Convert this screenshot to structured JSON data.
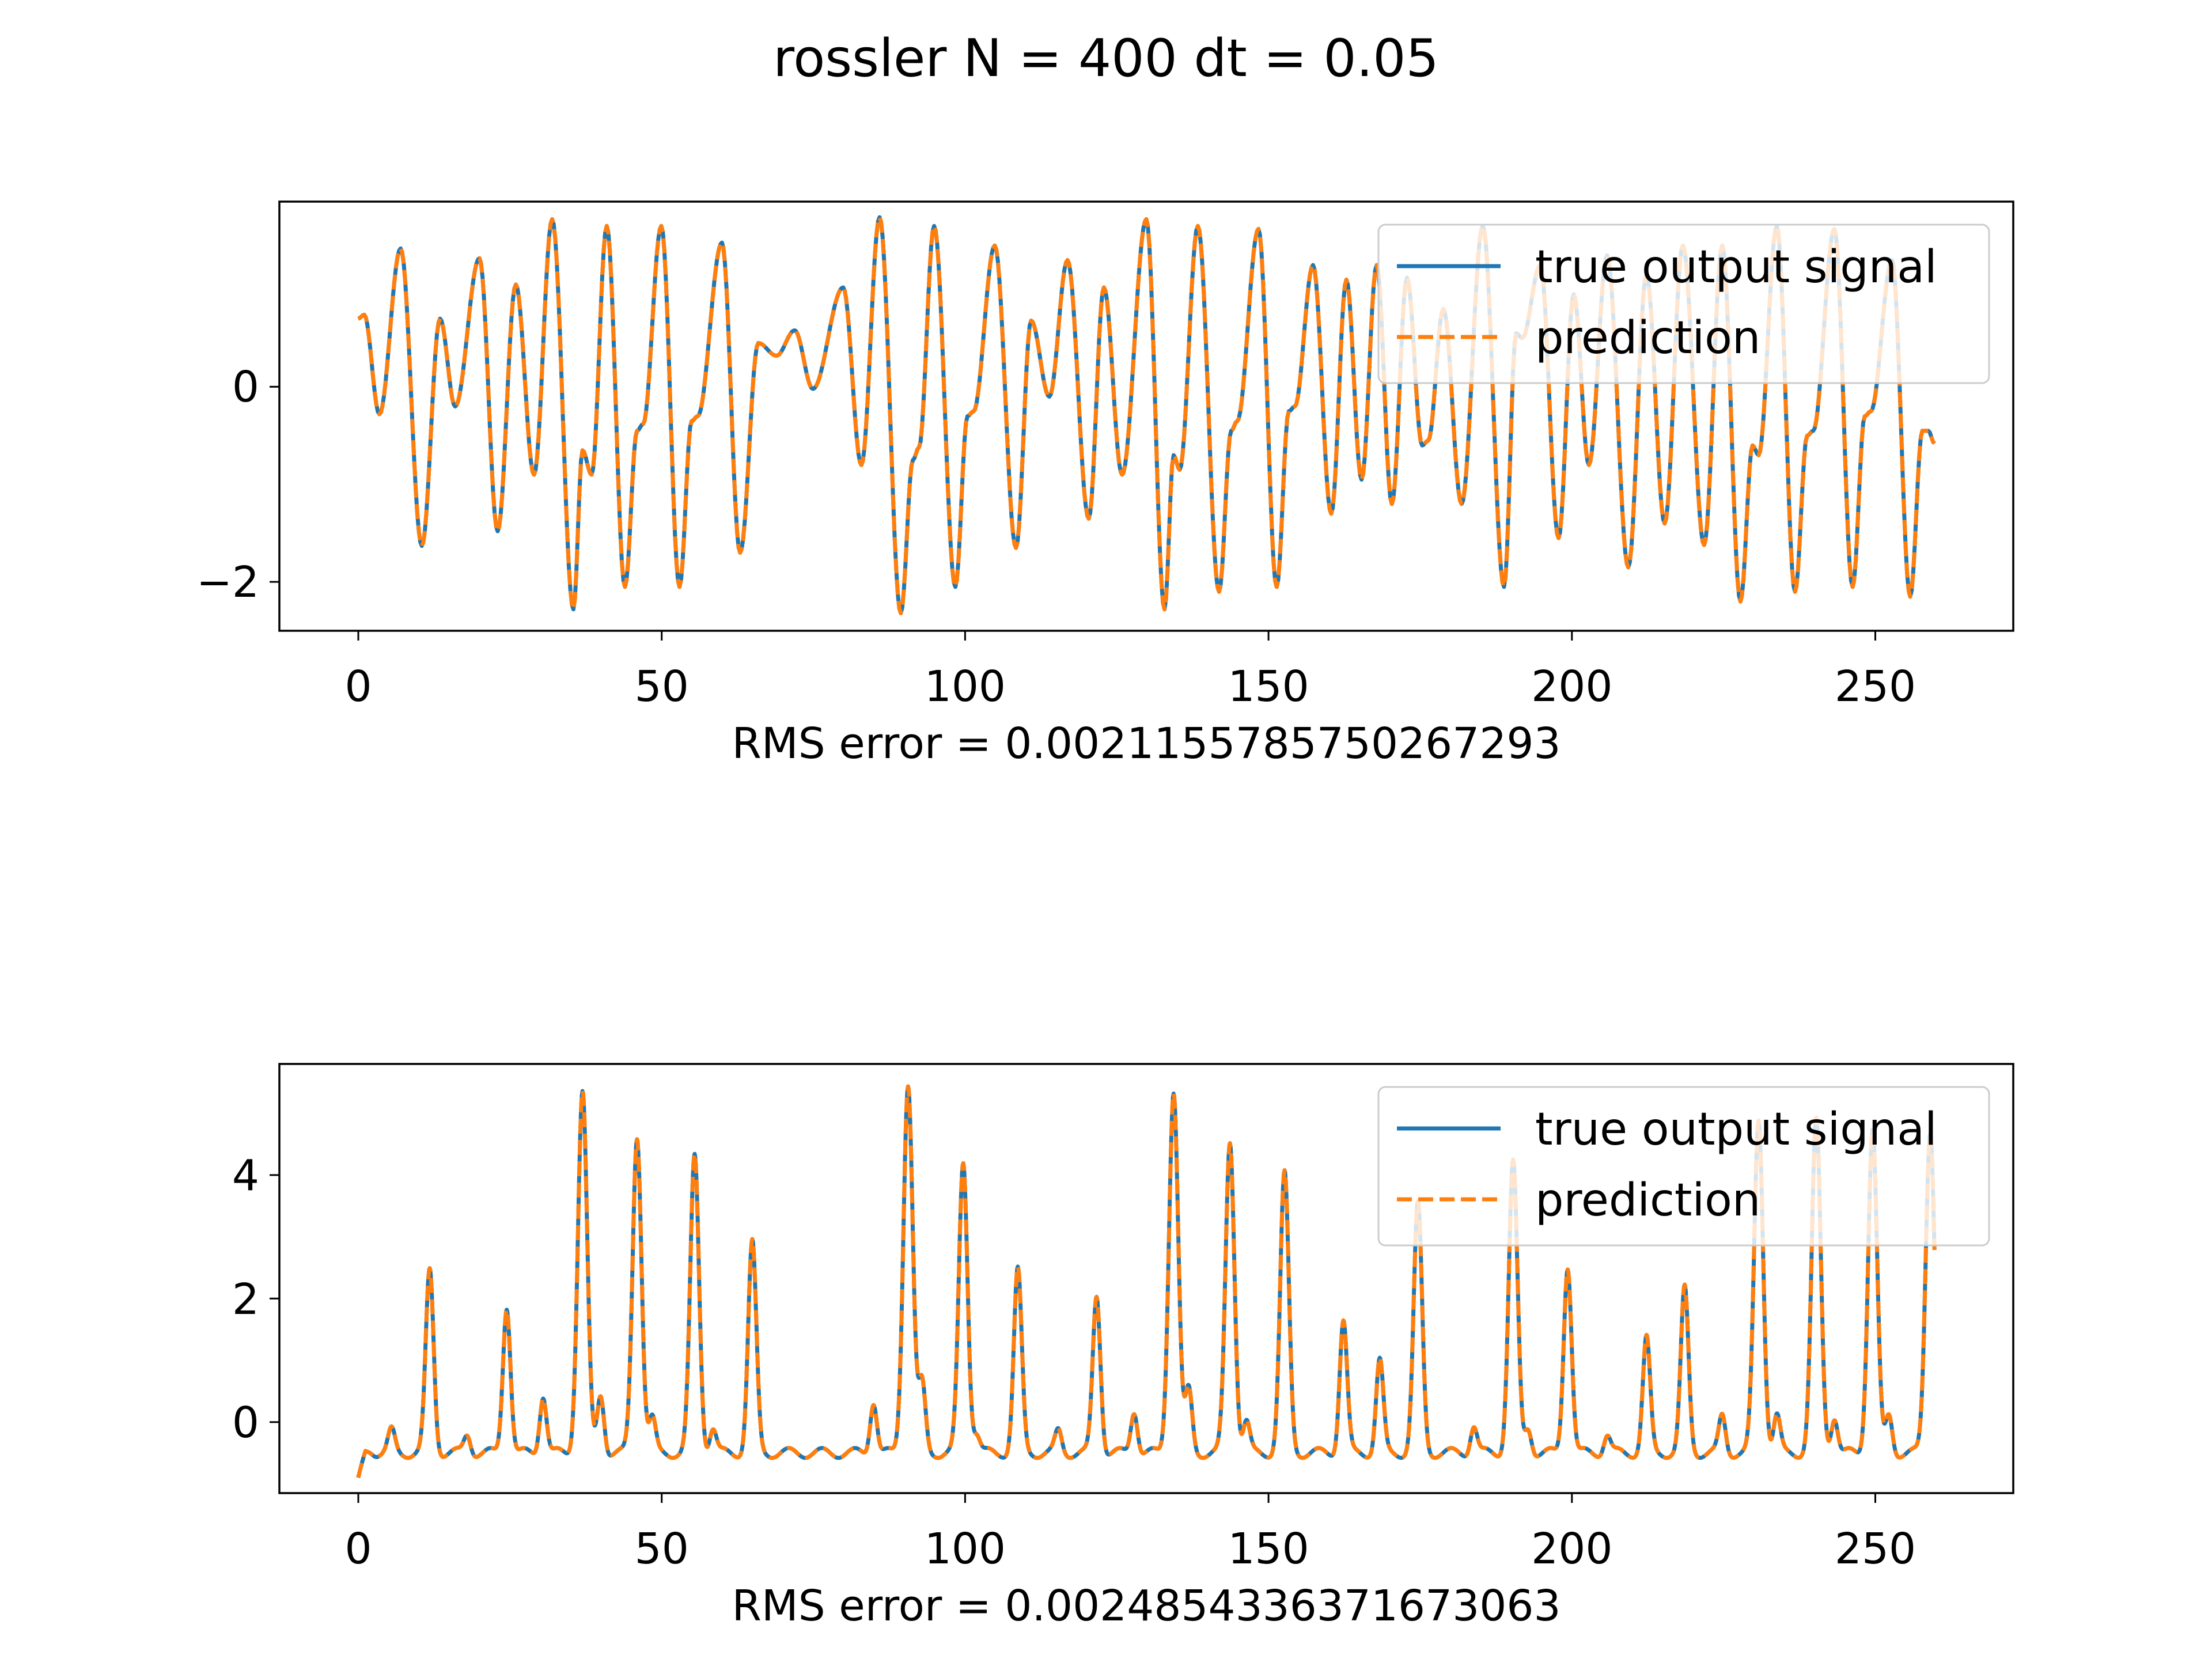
{
  "figure": {
    "title": "rossler N = 400 dt = 0.05"
  },
  "colors": {
    "true_signal": "#1f77b4",
    "prediction": "#ff7f0e",
    "axes": "#000000",
    "background": "#ffffff"
  },
  "chart_data": [
    {
      "type": "line",
      "title": "",
      "xlabel": "RMS error = 0.0021155785750267293",
      "ylabel": "",
      "xlim": [
        -13,
        273
      ],
      "ylim": [
        -2.5,
        1.9
      ],
      "xticks": [
        0,
        50,
        100,
        150,
        200,
        250
      ],
      "xtick_labels": [
        "0",
        "50",
        "100",
        "150",
        "200",
        "250"
      ],
      "yticks": [
        -2,
        0
      ],
      "ytick_labels": [
        "−2",
        "0"
      ],
      "legend": {
        "location": "top-right",
        "entries": [
          "true output signal",
          "prediction"
        ]
      },
      "x_end": 260,
      "extrema": [
        [
          0,
          0.7
        ],
        [
          1,
          0.74
        ],
        [
          3.5,
          -0.28
        ],
        [
          7,
          1.42
        ],
        [
          10.5,
          -1.63
        ],
        [
          13.5,
          0.7
        ],
        [
          16,
          -0.2
        ],
        [
          20,
          1.32
        ],
        [
          23,
          -1.48
        ],
        [
          26,
          1.05
        ],
        [
          29,
          -0.9
        ],
        [
          32,
          1.72
        ],
        [
          35.5,
          -2.28
        ],
        [
          37,
          -0.65
        ],
        [
          38.5,
          -0.9
        ],
        [
          41,
          1.65
        ],
        [
          44,
          -2.05
        ],
        [
          46,
          -0.45
        ],
        [
          47,
          -0.38
        ],
        [
          50,
          1.65
        ],
        [
          53,
          -2.05
        ],
        [
          55,
          -0.35
        ],
        [
          56,
          -0.3
        ],
        [
          60,
          1.48
        ],
        [
          63,
          -1.7
        ],
        [
          66,
          0.45
        ],
        [
          69,
          0.32
        ],
        [
          72,
          0.58
        ],
        [
          75,
          -0.02
        ],
        [
          80,
          1.02
        ],
        [
          83,
          -0.8
        ],
        [
          86,
          1.74
        ],
        [
          89.5,
          -2.32
        ],
        [
          91.5,
          -0.75
        ],
        [
          92.5,
          -0.62
        ],
        [
          95,
          1.65
        ],
        [
          98.5,
          -2.05
        ],
        [
          100.5,
          -0.3
        ],
        [
          101.5,
          -0.25
        ],
        [
          105,
          1.45
        ],
        [
          108.5,
          -1.65
        ],
        [
          111,
          0.68
        ],
        [
          114,
          -0.1
        ],
        [
          117,
          1.3
        ],
        [
          120.5,
          -1.35
        ],
        [
          123,
          1.02
        ],
        [
          126,
          -0.9
        ],
        [
          130,
          1.72
        ],
        [
          133,
          -2.28
        ],
        [
          134.5,
          -0.7
        ],
        [
          135.5,
          -0.85
        ],
        [
          138.5,
          1.65
        ],
        [
          142,
          -2.1
        ],
        [
          144,
          -0.45
        ],
        [
          145,
          -0.35
        ],
        [
          148.5,
          1.62
        ],
        [
          151.5,
          -2.05
        ],
        [
          153.5,
          -0.25
        ],
        [
          154.5,
          -0.2
        ],
        [
          157.5,
          1.25
        ],
        [
          160.5,
          -1.3
        ],
        [
          163,
          1.1
        ],
        [
          165.5,
          -0.95
        ],
        [
          168,
          1.25
        ],
        [
          170.5,
          -1.2
        ],
        [
          173,
          1.12
        ],
        [
          175.5,
          -0.6
        ],
        [
          176.5,
          -0.55
        ],
        [
          179,
          0.8
        ],
        [
          182,
          -1.2
        ],
        [
          185.5,
          1.65
        ],
        [
          189,
          -2.05
        ],
        [
          191,
          0.55
        ],
        [
          192,
          0.5
        ],
        [
          195,
          1.25
        ],
        [
          198,
          -1.55
        ],
        [
          200.5,
          0.95
        ],
        [
          203,
          -0.8
        ],
        [
          206,
          1.35
        ],
        [
          209.5,
          -1.85
        ],
        [
          212.5,
          1.15
        ],
        [
          215.5,
          -1.4
        ],
        [
          218.5,
          1.45
        ],
        [
          222,
          -1.62
        ],
        [
          225,
          1.45
        ],
        [
          228,
          -2.2
        ],
        [
          230,
          -0.6
        ],
        [
          231,
          -0.7
        ],
        [
          234,
          1.65
        ],
        [
          237,
          -2.1
        ],
        [
          239,
          -0.5
        ],
        [
          240,
          -0.45
        ],
        [
          243.5,
          1.62
        ],
        [
          246.5,
          -2.05
        ],
        [
          248.5,
          -0.3
        ],
        [
          249.5,
          -0.25
        ],
        [
          253,
          1.3
        ],
        [
          256,
          -2.15
        ],
        [
          258,
          -0.45
        ],
        [
          259,
          -0.45
        ],
        [
          260,
          -0.58
        ]
      ]
    },
    {
      "type": "line",
      "title": "",
      "xlabel": "RMS error = 0.0024854336371673063",
      "ylabel": "",
      "xlim": [
        -13,
        273
      ],
      "ylim": [
        -1.15,
        5.8
      ],
      "xticks": [
        0,
        50,
        100,
        150,
        200,
        250
      ],
      "xtick_labels": [
        "0",
        "50",
        "100",
        "150",
        "200",
        "250"
      ],
      "yticks": [
        0,
        2,
        4
      ],
      "ytick_labels": [
        "0",
        "2",
        "4"
      ],
      "legend": {
        "location": "top-right",
        "entries": [
          "true output signal",
          "prediction"
        ]
      },
      "x_end": 260,
      "baseline": -0.5,
      "start_value": -0.9,
      "peaks": [
        [
          2,
          -0.45
        ],
        [
          5.5,
          -0.15
        ],
        [
          11.8,
          2.45
        ],
        [
          18,
          -0.2
        ],
        [
          24.5,
          1.9
        ],
        [
          30.5,
          0.45
        ],
        [
          37,
          5.35
        ],
        [
          40,
          0.45
        ],
        [
          46,
          4.65
        ],
        [
          48.5,
          0.05
        ],
        [
          55.5,
          4.3
        ],
        [
          58.5,
          -0.1
        ],
        [
          65,
          2.9
        ],
        [
          85,
          0.35
        ],
        [
          90.7,
          5.5
        ],
        [
          93,
          0.6
        ],
        [
          99.8,
          4.2
        ],
        [
          102,
          -0.2
        ],
        [
          108.8,
          2.45
        ],
        [
          115.5,
          -0.15
        ],
        [
          121.8,
          2.05
        ],
        [
          128,
          0.2
        ],
        [
          134.5,
          5.38
        ],
        [
          137,
          0.5
        ],
        [
          143.8,
          4.55
        ],
        [
          146.5,
          0.0
        ],
        [
          152.8,
          4.0
        ],
        [
          162.5,
          1.65
        ],
        [
          168.5,
          1.0
        ],
        [
          174.8,
          3.5
        ],
        [
          184,
          -0.05
        ],
        [
          190.5,
          4.2
        ],
        [
          193,
          -0.1
        ],
        [
          199.5,
          2.55
        ],
        [
          206,
          -0.2
        ],
        [
          212.5,
          1.35
        ],
        [
          218.8,
          2.15
        ],
        [
          225,
          0.1
        ],
        [
          231,
          4.9
        ],
        [
          234,
          0.1
        ],
        [
          240.5,
          4.85
        ],
        [
          243.5,
          0.1
        ],
        [
          249.8,
          4.75
        ],
        [
          252.5,
          0.1
        ],
        [
          259.3,
          4.75
        ]
      ]
    }
  ]
}
